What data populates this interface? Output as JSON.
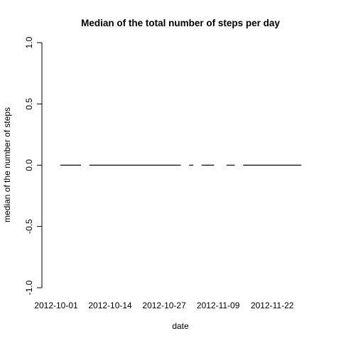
{
  "chart_data": {
    "type": "line",
    "title": "Median of the total number of steps per day",
    "xlabel": "date",
    "ylabel": "median of the number of steps",
    "ylim": [
      -1.0,
      1.0
    ],
    "y_ticks": [
      {
        "value": -1.0,
        "label": "-1.0"
      },
      {
        "value": -0.5,
        "label": "-0.5"
      },
      {
        "value": 0.0,
        "label": "0.0"
      },
      {
        "value": 0.5,
        "label": "0.5"
      },
      {
        "value": 1.0,
        "label": "1.0"
      }
    ],
    "x_start": "2012-10-01",
    "x_end": "2012-11-30",
    "x_ticks": [
      "2012-10-01",
      "2012-10-14",
      "2012-10-27",
      "2012-11-09",
      "2012-11-22"
    ],
    "missing_dates": [
      "2012-10-01",
      "2012-10-08",
      "2012-11-01",
      "2012-11-04",
      "2012-11-09",
      "2012-11-10",
      "2012-11-14",
      "2012-11-30"
    ],
    "series": [
      {
        "values_by_date": "every observed day has median 0",
        "value": 0
      }
    ],
    "grid": false
  }
}
